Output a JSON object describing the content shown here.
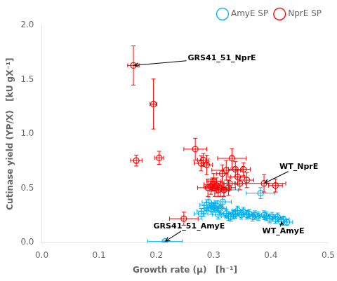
{
  "chart_data": {
    "type": "scatter",
    "xlabel": "Growth rate (μ)   [h⁻¹]",
    "ylabel": "Cutinase yield (YP/X)   [kU gX⁻¹]",
    "xlim": [
      0,
      0.5
    ],
    "ylim": [
      0,
      2
    ],
    "xticks": [
      {
        "value": 0,
        "label": "0.0"
      },
      0.1,
      0.2,
      0.3,
      0.4,
      0.5
    ],
    "yticks": [
      {
        "value": 0,
        "label": "0.0"
      },
      0.5,
      {
        "value": 1,
        "label": "1.0"
      },
      1.5,
      {
        "value": 2,
        "label": "2.0"
      }
    ],
    "grid": false,
    "legend": "upper right",
    "series": [
      {
        "name": "AmyE SP",
        "color": "#00B0F0",
        "marker": "circle",
        "x": [
          0.215,
          0.278,
          0.283,
          0.288,
          0.292,
          0.296,
          0.299,
          0.302,
          0.306,
          0.308,
          0.312,
          0.316,
          0.318,
          0.322,
          0.326,
          0.33,
          0.334,
          0.338,
          0.342,
          0.348,
          0.352,
          0.358,
          0.362,
          0.368,
          0.372,
          0.378,
          0.382,
          0.388,
          0.392,
          0.398,
          0.402,
          0.408,
          0.412,
          0.418,
          0.422,
          0.428
        ],
        "values": [
          0.01,
          0.265,
          0.29,
          0.345,
          0.37,
          0.31,
          0.325,
          0.318,
          0.335,
          0.258,
          0.315,
          0.375,
          0.485,
          0.268,
          0.245,
          0.238,
          0.258,
          0.265,
          0.295,
          0.255,
          0.285,
          0.255,
          0.265,
          0.238,
          0.252,
          0.242,
          0.455,
          0.252,
          0.242,
          0.222,
          0.238,
          0.218,
          0.232,
          0.195,
          0.212,
          0.188
        ],
        "xerr": [
          0.03,
          0.012,
          0.012,
          0.012,
          0.012,
          0.012,
          0.01,
          0.012,
          0.01,
          0.01,
          0.01,
          0.015,
          0.025,
          0.012,
          0.012,
          0.01,
          0.01,
          0.012,
          0.01,
          0.012,
          0.01,
          0.012,
          0.01,
          0.01,
          0.012,
          0.01,
          0.025,
          0.01,
          0.012,
          0.01,
          0.012,
          0.01,
          0.01,
          0.01,
          0.01,
          0.01
        ],
        "yerr": [
          0.005,
          0.05,
          0.05,
          0.05,
          0.05,
          0.05,
          0.04,
          0.04,
          0.05,
          0.04,
          0.04,
          0.05,
          0.06,
          0.04,
          0.04,
          0.04,
          0.04,
          0.04,
          0.04,
          0.04,
          0.04,
          0.04,
          0.04,
          0.04,
          0.04,
          0.04,
          0.05,
          0.04,
          0.04,
          0.04,
          0.04,
          0.04,
          0.04,
          0.03,
          0.03,
          0.03
        ]
      },
      {
        "name": "NprE SP",
        "color": "#FF0000",
        "marker": "circle",
        "x": [
          0.16,
          0.195,
          0.165,
          0.205,
          0.248,
          0.268,
          0.278,
          0.282,
          0.288,
          0.29,
          0.295,
          0.298,
          0.3,
          0.302,
          0.305,
          0.308,
          0.312,
          0.315,
          0.318,
          0.322,
          0.326,
          0.328,
          0.332,
          0.338,
          0.342,
          0.346,
          0.352,
          0.358,
          0.388,
          0.408
        ],
        "values": [
          1.63,
          1.275,
          0.755,
          0.78,
          0.22,
          0.86,
          0.73,
          0.76,
          0.715,
          0.505,
          0.515,
          0.535,
          0.565,
          0.505,
          0.525,
          0.485,
          0.495,
          0.635,
          0.485,
          0.665,
          0.505,
          0.545,
          0.775,
          0.675,
          0.605,
          0.545,
          0.675,
          0.575,
          0.545,
          0.525
        ],
        "xerr": [
          0.01,
          0.006,
          0.01,
          0.008,
          0.025,
          0.02,
          0.012,
          0.01,
          0.01,
          0.018,
          0.012,
          0.015,
          0.012,
          0.015,
          0.01,
          0.012,
          0.015,
          0.01,
          0.01,
          0.025,
          0.012,
          0.01,
          0.025,
          0.012,
          0.012,
          0.01,
          0.012,
          0.012,
          0.038,
          0.012
        ],
        "yerr": [
          0.18,
          0.23,
          0.05,
          0.06,
          0.06,
          0.1,
          0.07,
          0.06,
          0.09,
          0.08,
          0.07,
          0.06,
          0.07,
          0.08,
          0.07,
          0.06,
          0.07,
          0.08,
          0.06,
          0.09,
          0.07,
          0.06,
          0.09,
          0.07,
          0.07,
          0.06,
          0.06,
          0.07,
          0.08,
          0.06
        ]
      }
    ],
    "annotations": [
      {
        "text": "GRS41_51_NprE",
        "x": 0.16,
        "y": 1.63,
        "xytext": [
          0.255,
          1.68
        ]
      },
      {
        "text": "GRS41_51_AmyE",
        "x": 0.215,
        "y": 0.01,
        "xytext": [
          0.195,
          0.13
        ]
      },
      {
        "text": "WT_NprE",
        "x": 0.388,
        "y": 0.545,
        "xytext": [
          0.415,
          0.68
        ]
      },
      {
        "text": "WT_AmyE",
        "x": 0.418,
        "y": 0.195,
        "xytext": [
          0.385,
          0.085
        ]
      }
    ]
  }
}
